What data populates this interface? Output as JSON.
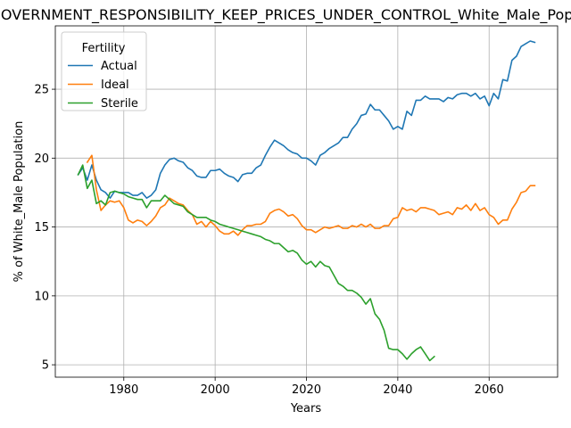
{
  "chart_data": {
    "type": "line",
    "title": "GOVERNMENT_RESPONSIBILITY_KEEP_PRICES_UNDER_CONTROL_White_Male_Population",
    "xlabel": "Years",
    "ylabel": "% of White_Male Population",
    "xlim": [
      1965,
      2075
    ],
    "ylim": [
      4.1,
      29.6
    ],
    "xticks": [
      1980,
      2000,
      2020,
      2040,
      2060
    ],
    "yticks": [
      5,
      10,
      15,
      20,
      25
    ],
    "grid": true,
    "legend": {
      "title": "Fertility",
      "position": "top-left"
    },
    "series": [
      {
        "name": "Actual",
        "color": "#1f77b4",
        "x": [
          1970,
          1971,
          1972,
          1973,
          1974,
          1975,
          1976,
          1977,
          1978,
          1979,
          1980,
          1981,
          1982,
          1983,
          1984,
          1985,
          1986,
          1987,
          1988,
          1989,
          1990,
          1991,
          1992,
          1993,
          1994,
          1995,
          1996,
          1997,
          1998,
          1999,
          2000,
          2001,
          2002,
          2003,
          2004,
          2005,
          2006,
          2007,
          2008,
          2009,
          2010,
          2011,
          2012,
          2013,
          2014,
          2015,
          2016,
          2017,
          2018,
          2019,
          2020,
          2021,
          2022,
          2023,
          2024,
          2025,
          2026,
          2027,
          2028,
          2029,
          2030,
          2031,
          2032,
          2033,
          2034,
          2035,
          2036,
          2037,
          2038,
          2039,
          2040,
          2041,
          2042,
          2043,
          2044,
          2045,
          2046,
          2047,
          2048,
          2049,
          2050,
          2051,
          2052,
          2053,
          2054,
          2055,
          2056,
          2057,
          2058,
          2059,
          2060,
          2061,
          2062,
          2063,
          2064,
          2065,
          2066,
          2067,
          2068,
          2069,
          2070
        ],
        "values": [
          18.8,
          19.3,
          18.4,
          19.5,
          18.4,
          17.7,
          17.5,
          17.1,
          17.6,
          17.5,
          17.5,
          17.5,
          17.3,
          17.3,
          17.5,
          17.1,
          17.3,
          17.7,
          18.9,
          19.5,
          19.9,
          20.0,
          19.8,
          19.7,
          19.3,
          19.1,
          18.7,
          18.6,
          18.6,
          19.1,
          19.1,
          19.2,
          18.9,
          18.7,
          18.6,
          18.3,
          18.8,
          18.9,
          18.9,
          19.3,
          19.5,
          20.2,
          20.8,
          21.3,
          21.1,
          20.9,
          20.6,
          20.4,
          20.3,
          20.0,
          20.0,
          19.8,
          19.5,
          20.2,
          20.4,
          20.7,
          20.9,
          21.1,
          21.5,
          21.5,
          22.1,
          22.5,
          23.1,
          23.2,
          23.9,
          23.5,
          23.5,
          23.1,
          22.7,
          22.1,
          22.3,
          22.1,
          23.4,
          23.1,
          24.2,
          24.2,
          24.5,
          24.3,
          24.3,
          24.3,
          24.1,
          24.4,
          24.3,
          24.6,
          24.7,
          24.7,
          24.5,
          24.7,
          24.3,
          24.5,
          23.8,
          24.7,
          24.3,
          25.7,
          25.6,
          27.1,
          27.4,
          28.1,
          28.3,
          28.5,
          28.4
        ]
      },
      {
        "name": "Ideal",
        "color": "#ff7f0e",
        "x": [
          1972,
          1973,
          1974,
          1975,
          1976,
          1977,
          1978,
          1979,
          1980,
          1981,
          1982,
          1983,
          1984,
          1985,
          1986,
          1987,
          1988,
          1989,
          1990,
          1991,
          1992,
          1993,
          1994,
          1995,
          1996,
          1997,
          1998,
          1999,
          2000,
          2001,
          2002,
          2003,
          2004,
          2005,
          2006,
          2007,
          2008,
          2009,
          2010,
          2011,
          2012,
          2013,
          2014,
          2015,
          2016,
          2017,
          2018,
          2019,
          2020,
          2021,
          2022,
          2023,
          2024,
          2025,
          2026,
          2027,
          2028,
          2029,
          2030,
          2031,
          2032,
          2033,
          2034,
          2035,
          2036,
          2037,
          2038,
          2039,
          2040,
          2041,
          2042,
          2043,
          2044,
          2045,
          2046,
          2047,
          2048,
          2049,
          2050,
          2051,
          2052,
          2053,
          2054,
          2055,
          2056,
          2057,
          2058,
          2059,
          2060,
          2061,
          2062,
          2063,
          2064,
          2065,
          2066,
          2067,
          2068,
          2069,
          2070
        ],
        "values": [
          19.7,
          20.2,
          17.7,
          16.2,
          16.6,
          16.9,
          16.8,
          16.9,
          16.4,
          15.5,
          15.3,
          15.5,
          15.4,
          15.1,
          15.4,
          15.8,
          16.4,
          16.6,
          17.1,
          16.9,
          16.7,
          16.6,
          16.2,
          15.9,
          15.2,
          15.4,
          15.0,
          15.4,
          15.1,
          14.7,
          14.5,
          14.5,
          14.7,
          14.4,
          14.8,
          15.1,
          15.1,
          15.2,
          15.2,
          15.4,
          16.0,
          16.2,
          16.3,
          16.1,
          15.8,
          15.9,
          15.6,
          15.1,
          14.8,
          14.8,
          14.6,
          14.8,
          15.0,
          14.9,
          15.0,
          15.1,
          14.9,
          14.9,
          15.1,
          15.0,
          15.2,
          15.0,
          15.2,
          14.9,
          14.9,
          15.1,
          15.1,
          15.6,
          15.7,
          16.4,
          16.2,
          16.3,
          16.1,
          16.4,
          16.4,
          16.3,
          16.2,
          15.9,
          16.0,
          16.1,
          15.9,
          16.4,
          16.3,
          16.6,
          16.2,
          16.7,
          16.2,
          16.4,
          15.9,
          15.7,
          15.2,
          15.5,
          15.5,
          16.3,
          16.8,
          17.5,
          17.6,
          18.0,
          18.0
        ]
      },
      {
        "name": "Sterile",
        "color": "#2ca02c",
        "x": [
          1970,
          1971,
          1972,
          1973,
          1974,
          1975,
          1976,
          1977,
          1978,
          1979,
          1980,
          1981,
          1982,
          1983,
          1984,
          1985,
          1986,
          1987,
          1988,
          1989,
          1990,
          1991,
          1992,
          1993,
          1994,
          1995,
          1996,
          1997,
          1998,
          1999,
          2000,
          2001,
          2002,
          2003,
          2004,
          2005,
          2006,
          2007,
          2008,
          2009,
          2010,
          2011,
          2012,
          2013,
          2014,
          2015,
          2016,
          2017,
          2018,
          2019,
          2020,
          2021,
          2022,
          2023,
          2024,
          2025,
          2026,
          2027,
          2028,
          2029,
          2030,
          2031,
          2032,
          2033,
          2034,
          2035,
          2036,
          2037,
          2038,
          2039,
          2040,
          2041,
          2042,
          2043,
          2044,
          2045,
          2046,
          2047,
          2048
        ],
        "values": [
          18.8,
          19.5,
          17.8,
          18.4,
          16.7,
          16.9,
          16.6,
          17.5,
          17.6,
          17.5,
          17.4,
          17.2,
          17.1,
          17.0,
          17.0,
          16.4,
          16.9,
          16.9,
          16.9,
          17.3,
          17.0,
          16.7,
          16.6,
          16.5,
          16.1,
          15.9,
          15.7,
          15.7,
          15.7,
          15.5,
          15.4,
          15.2,
          15.1,
          15.0,
          14.9,
          14.8,
          14.7,
          14.6,
          14.5,
          14.4,
          14.3,
          14.1,
          14.0,
          13.8,
          13.8,
          13.5,
          13.2,
          13.3,
          13.1,
          12.6,
          12.3,
          12.5,
          12.1,
          12.5,
          12.2,
          12.1,
          11.5,
          10.9,
          10.7,
          10.4,
          10.4,
          10.2,
          9.9,
          9.4,
          9.8,
          8.7,
          8.3,
          7.5,
          6.2,
          6.1,
          6.1,
          5.8,
          5.4,
          5.8,
          6.1,
          6.3,
          5.8,
          5.3,
          5.6
        ]
      }
    ]
  }
}
